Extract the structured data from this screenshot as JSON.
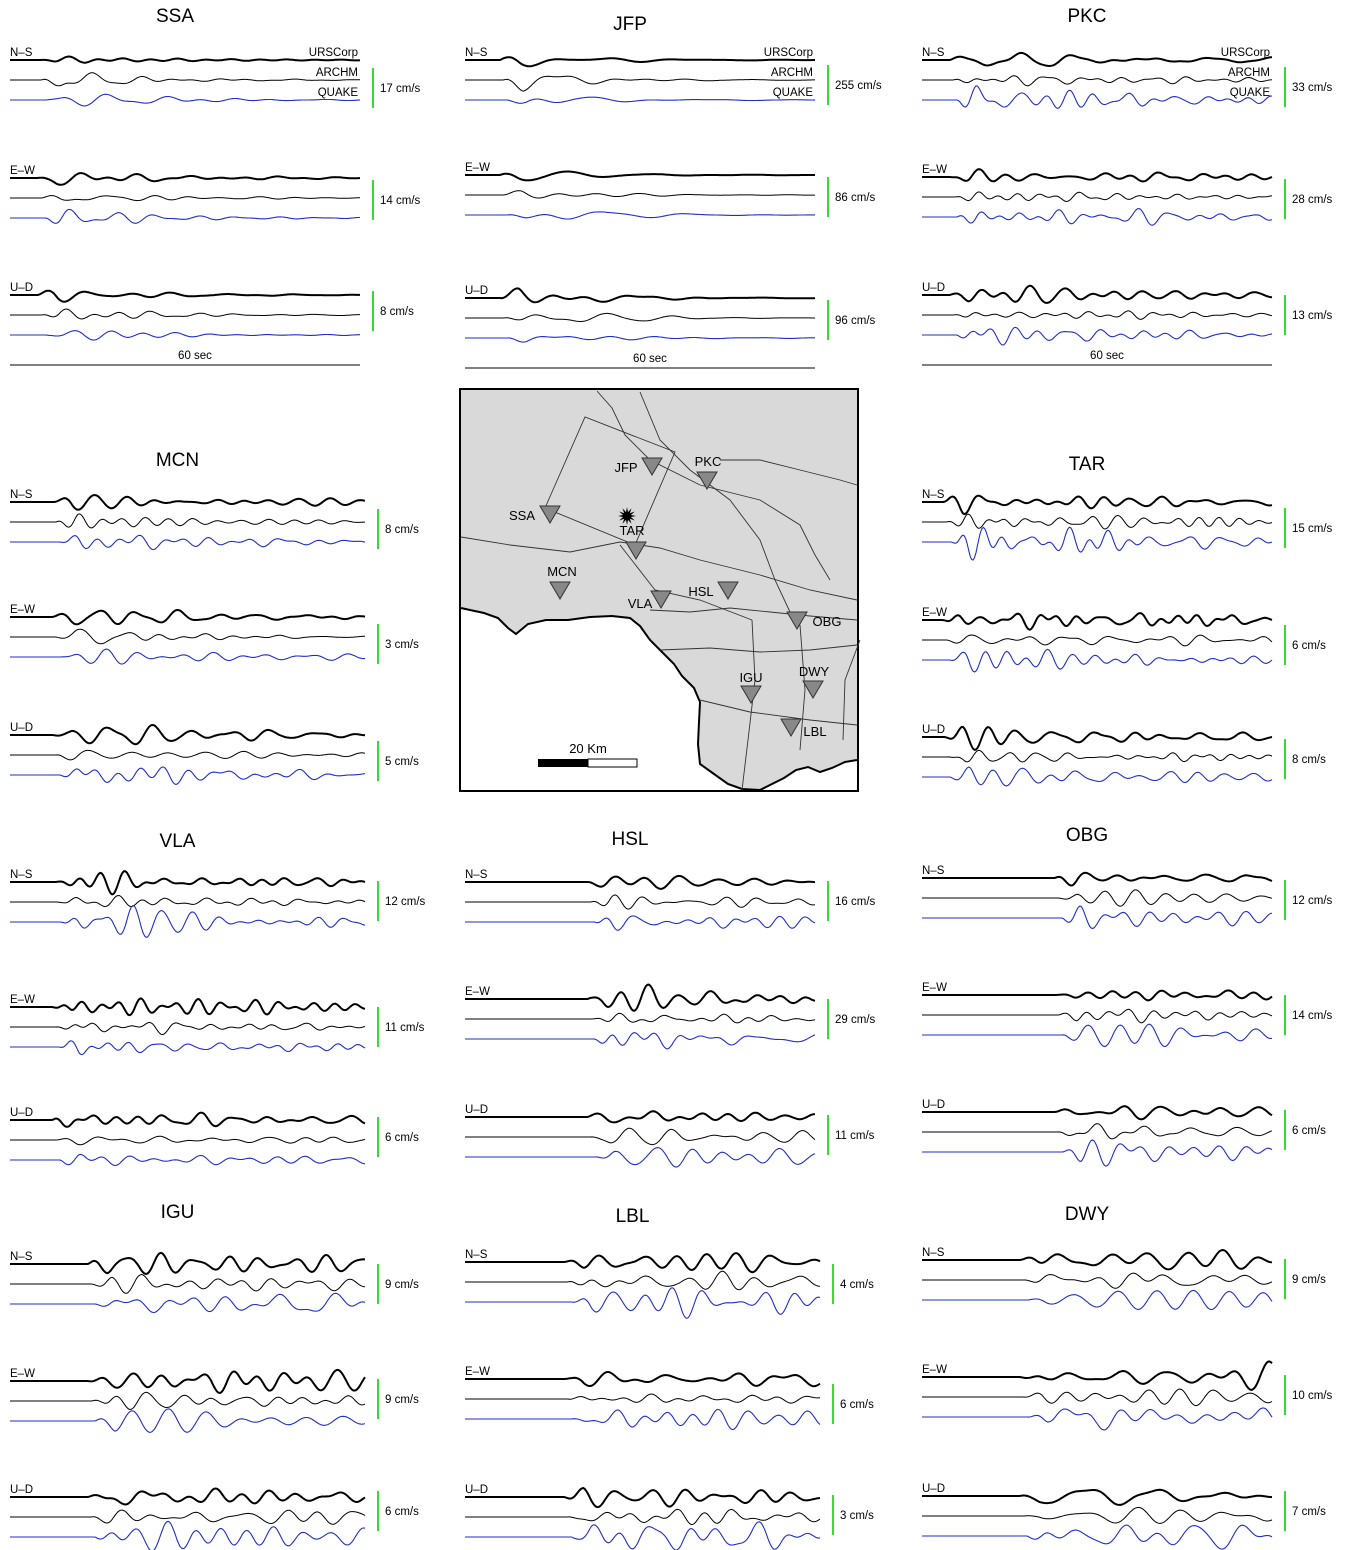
{
  "trace_labels": [
    "URSCorp",
    "ARCHM",
    "QUAKE"
  ],
  "component_labels": [
    "N–S",
    "E–W",
    "U–D"
  ],
  "time_scale_label": "60 sec",
  "colors": {
    "scale_bar": "#33dd33",
    "quake_trace": "#1f2fc8",
    "model_trace": "#000000",
    "map_land": "#d9d9d9"
  },
  "stations": [
    {
      "name": "SSA",
      "scales": [
        "17 cm/s",
        "14 cm/s",
        "8 cm/s"
      ]
    },
    {
      "name": "JFP",
      "scales": [
        "255 cm/s",
        "86 cm/s",
        "96 cm/s"
      ]
    },
    {
      "name": "PKC",
      "scales": [
        "33 cm/s",
        "28 cm/s",
        "13 cm/s"
      ]
    },
    {
      "name": "MCN",
      "scales": [
        "8 cm/s",
        "3 cm/s",
        "5 cm/s"
      ]
    },
    {
      "name": "TAR",
      "scales": [
        "15 cm/s",
        "6 cm/s",
        "8 cm/s"
      ]
    },
    {
      "name": "VLA",
      "scales": [
        "12 cm/s",
        "11 cm/s",
        "6 cm/s"
      ]
    },
    {
      "name": "HSL",
      "scales": [
        "16 cm/s",
        "29 cm/s",
        "11 cm/s"
      ]
    },
    {
      "name": "OBG",
      "scales": [
        "12 cm/s",
        "14 cm/s",
        "6 cm/s"
      ]
    },
    {
      "name": "IGU",
      "scales": [
        "9 cm/s",
        "9 cm/s",
        "6 cm/s"
      ]
    },
    {
      "name": "LBL",
      "scales": [
        "4 cm/s",
        "6 cm/s",
        "3 cm/s"
      ]
    },
    {
      "name": "DWY",
      "scales": [
        "9 cm/s",
        "10 cm/s",
        "7 cm/s"
      ]
    }
  ],
  "map": {
    "scale_label": "20 Km",
    "station_labels": [
      "JFP",
      "PKC",
      "SSA",
      "TAR",
      "MCN",
      "HSL",
      "VLA",
      "OBG",
      "IGU",
      "DWY",
      "LBL"
    ]
  }
}
